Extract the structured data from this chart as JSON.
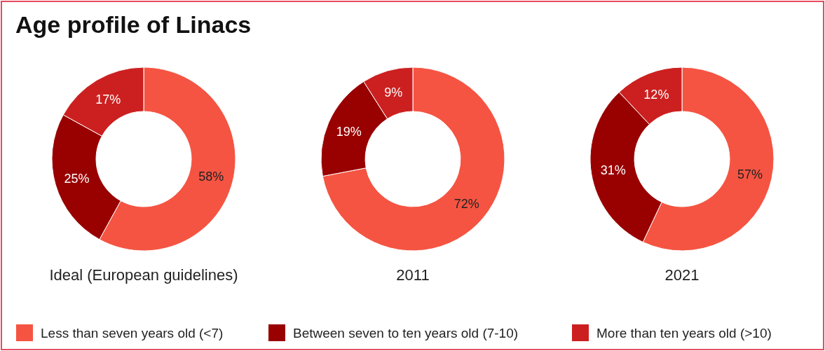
{
  "chart_data": [
    {
      "type": "donut",
      "title": "Age profile of Linacs",
      "subtitle": "Ideal (European guidelines)",
      "categories": [
        "Less than seven years old (<7)",
        "Between seven to ten years old (7-10)",
        "More than ten years old (>10)"
      ],
      "values": [
        58,
        25,
        17
      ],
      "value_labels": [
        "58%",
        "25%",
        "17%"
      ],
      "colors": [
        "#f55442",
        "#990000",
        "#cc2020"
      ],
      "legend": "bottom"
    },
    {
      "type": "donut",
      "subtitle": "2011",
      "categories": [
        null,
        null,
        null
      ],
      "values": [
        72,
        19,
        9
      ],
      "value_labels": [
        "72%",
        "19%",
        "9%"
      ],
      "colors": [
        "#f55442",
        "#990000",
        "#cc2020"
      ]
    },
    {
      "type": "donut",
      "subtitle": "2021",
      "categories": [
        null,
        null,
        null
      ],
      "values": [
        57,
        31,
        12
      ],
      "value_labels": [
        "57%",
        "31%",
        "12%"
      ],
      "colors": [
        "#f55442",
        "#990000",
        "#cc2020"
      ]
    }
  ]
}
